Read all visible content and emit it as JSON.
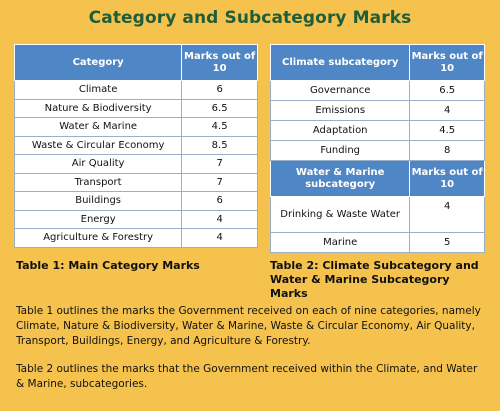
{
  "title": "Category and Subcategory Marks",
  "table1": {
    "header_category": "Category",
    "header_marks": "Marks out of 10",
    "rows": [
      {
        "name": "Climate",
        "mark": "6"
      },
      {
        "name": "Nature & Biodiversity",
        "mark": "6.5"
      },
      {
        "name": "Water & Marine",
        "mark": "4.5"
      },
      {
        "name": "Waste & Circular Economy",
        "mark": "8.5"
      },
      {
        "name": "Air Quality",
        "mark": "7"
      },
      {
        "name": "Transport",
        "mark": "7"
      },
      {
        "name": "Buildings",
        "mark": "6"
      },
      {
        "name": "Energy",
        "mark": "4"
      },
      {
        "name": "Agriculture & Forestry",
        "mark": "4"
      }
    ],
    "caption": "Table 1: Main Category Marks"
  },
  "table2": {
    "header_climate": "Climate subcategory",
    "header_marks": "Marks out of 10",
    "climate_rows": [
      {
        "name": "Governance",
        "mark": "6.5"
      },
      {
        "name": "Emissions",
        "mark": "4"
      },
      {
        "name": "Adaptation",
        "mark": "4.5"
      },
      {
        "name": "Funding",
        "mark": "8"
      }
    ],
    "header_water": "Water & Marine subcategory",
    "header_marks2": "Marks out of 10",
    "water_rows": [
      {
        "name": "Drinking & Waste Water",
        "mark": "4"
      },
      {
        "name": "Marine",
        "mark": "5"
      }
    ],
    "caption": "Table 2: Climate Subcategory and Water & Marine Subcategory Marks"
  },
  "paragraphs": [
    "Table 1 outlines the marks the Government received on each of nine categories, namely Climate, Nature & Biodiversity, Water & Marine, Waste & Circular Economy, Air Quality, Transport, Buildings, Energy, and Agriculture & Forestry.",
    "Table 2 outlines the marks that the Government received within the Climate, and Water & Marine, subcategories."
  ]
}
